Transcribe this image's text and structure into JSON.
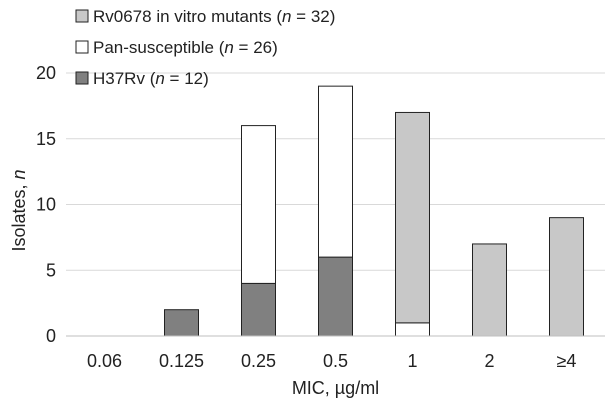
{
  "chart_data": {
    "type": "bar",
    "stacked": true,
    "categories": [
      "0.06",
      "0.125",
      "0.25",
      "0.5",
      "1",
      "2",
      "≥4"
    ],
    "series": [
      {
        "name": "H37Rv",
        "name_suffix_pre": " (",
        "n_symbol": "n",
        "name_suffix_post": " = 12)",
        "color": "#808080",
        "values": [
          0,
          2,
          4,
          6,
          0,
          0,
          0
        ]
      },
      {
        "name": "Pan-susceptible",
        "name_suffix_pre": " (",
        "n_symbol": "n",
        "name_suffix_post": " = 26)",
        "color": "#ffffff",
        "values": [
          0,
          0,
          12,
          13,
          1,
          0,
          0
        ]
      },
      {
        "name": "Rv0678 in vitro mutants",
        "name_suffix_pre": " (",
        "n_symbol": "n",
        "name_suffix_post": " = 32)",
        "color": "#c8c8c8",
        "values": [
          0,
          0,
          0,
          0,
          16,
          7,
          9
        ]
      }
    ],
    "xlabel": "MIC, µg/ml",
    "ylabel_main": "Isolates, ",
    "ylabel_italic": "n",
    "ylim": [
      0,
      20
    ],
    "yticks": [
      "0",
      "5",
      "10",
      "15",
      "20"
    ],
    "grid": true,
    "legend_position": "top-left",
    "legend_order": [
      2,
      1,
      0
    ]
  }
}
